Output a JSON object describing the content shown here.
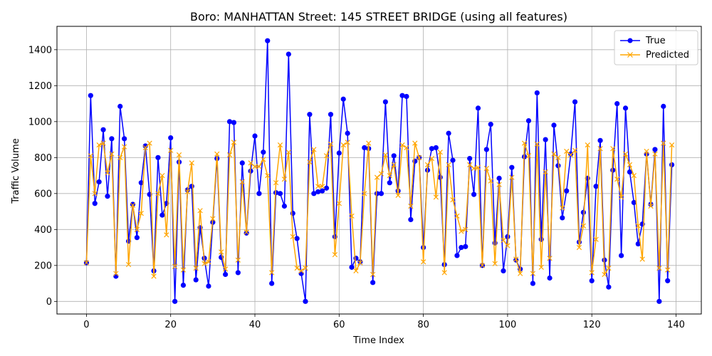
{
  "chart_data": {
    "type": "line",
    "title": "Boro: MANHATTAN Street: 145 STREET BRIDGE (using all features)",
    "xlabel": "Time Index",
    "ylabel": "Traffic Volume",
    "xlim": [
      -7,
      146
    ],
    "ylim": [
      -70,
      1530
    ],
    "xticks": [
      0,
      20,
      40,
      60,
      80,
      100,
      120,
      140
    ],
    "yticks": [
      0,
      200,
      400,
      600,
      800,
      1000,
      1200,
      1400
    ],
    "grid": true,
    "legend": "top-right",
    "series": [
      {
        "name": "True",
        "color": "#0000ff",
        "marker": "circle",
        "values": [
          215,
          1145,
          545,
          665,
          955,
          585,
          905,
          140,
          1085,
          905,
          335,
          540,
          355,
          660,
          865,
          595,
          170,
          800,
          480,
          545,
          910,
          0,
          775,
          90,
          620,
          640,
          120,
          410,
          240,
          85,
          440,
          795,
          245,
          150,
          1000,
          995,
          160,
          770,
          380,
          725,
          920,
          600,
          830,
          1450,
          100,
          605,
          600,
          530,
          1375,
          490,
          350,
          155,
          0,
          1040,
          600,
          610,
          615,
          630,
          1040,
          360,
          825,
          1125,
          935,
          190,
          240,
          220,
          855,
          850,
          105,
          600,
          600,
          1110,
          660,
          810,
          615,
          1145,
          1140,
          455,
          780,
          800,
          300,
          730,
          850,
          855,
          690,
          205,
          935,
          785,
          255,
          300,
          305,
          795,
          595,
          1075,
          200,
          845,
          985,
          325,
          685,
          170,
          360,
          745,
          230,
          180,
          805,
          1005,
          100,
          1160,
          345,
          900,
          130,
          980,
          755,
          465,
          615,
          820,
          1110,
          330,
          495,
          685,
          115,
          640,
          895,
          230,
          80,
          730,
          1100,
          255,
          1075,
          720,
          550,
          320,
          430,
          820,
          540,
          845,
          0,
          1085,
          115,
          760
        ]
      },
      {
        "name": "Predicted",
        "color": "#ffa500",
        "marker": "x",
        "values": [
          215,
          810,
          600,
          870,
          880,
          715,
          820,
          155,
          800,
          860,
          205,
          535,
          400,
          490,
          855,
          880,
          140,
          600,
          700,
          370,
          840,
          195,
          815,
          175,
          610,
          770,
          185,
          505,
          210,
          220,
          460,
          820,
          275,
          180,
          815,
          885,
          230,
          665,
          385,
          770,
          750,
          750,
          790,
          700,
          160,
          660,
          870,
          680,
          830,
          360,
          185,
          170,
          185,
          775,
          845,
          640,
          640,
          810,
          875,
          260,
          545,
          870,
          885,
          475,
          170,
          215,
          600,
          880,
          150,
          690,
          710,
          815,
          700,
          760,
          590,
          870,
          855,
          530,
          880,
          800,
          220,
          760,
          795,
          580,
          830,
          160,
          760,
          565,
          475,
          390,
          400,
          760,
          740,
          745,
          200,
          740,
          670,
          210,
          650,
          340,
          310,
          690,
          235,
          155,
          880,
          810,
          155,
          875,
          190,
          720,
          240,
          820,
          800,
          520,
          835,
          815,
          840,
          300,
          420,
          870,
          160,
          345,
          850,
          150,
          185,
          850,
          680,
          580,
          820,
          760,
          700,
          420,
          235,
          835,
          530,
          820,
          185,
          880,
          175,
          870
        ]
      }
    ]
  }
}
